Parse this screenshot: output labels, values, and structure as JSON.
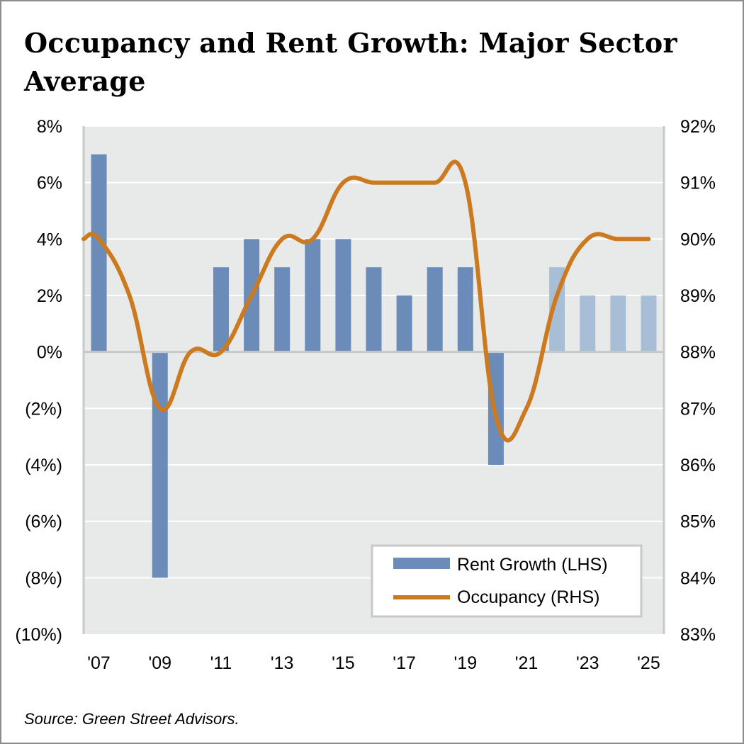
{
  "title": "Occupancy and Rent Growth: Major Sector Average",
  "source": "Source: Green Street Advisors.",
  "colors": {
    "rent_bar": "#6b8cb8",
    "rent_bar_forecast": "#a8bdd6",
    "occupancy_line": "#cc7a1f",
    "plot_bg": "#e8eaea",
    "grid": "#ffffff"
  },
  "chart_data": {
    "type": "bar+line",
    "categories": [
      "'07",
      "'08",
      "'09",
      "'10",
      "'11",
      "'12",
      "'13",
      "'14",
      "'15",
      "'16",
      "'17",
      "'18",
      "'19",
      "'20",
      "'21",
      "'22",
      "'23",
      "'24",
      "'25"
    ],
    "x_tick_labels": [
      "'07",
      "'09",
      "'11",
      "'13",
      "'15",
      "'17",
      "'19",
      "'21",
      "'23",
      "'25"
    ],
    "series": [
      {
        "name": "Rent Growth (LHS)",
        "type": "bar",
        "axis": "left",
        "values": [
          7,
          null,
          -8,
          null,
          3,
          4,
          3,
          4,
          4,
          3,
          2,
          3,
          3,
          -4,
          null,
          3,
          2,
          2,
          2
        ],
        "forecast_from": "'22"
      },
      {
        "name": "Occupancy (RHS)",
        "type": "line",
        "axis": "right",
        "values": [
          90.0,
          89.0,
          87.0,
          88.0,
          88.0,
          89.0,
          90.0,
          90.0,
          91.0,
          91.0,
          91.0,
          91.0,
          91.0,
          86.85,
          87.0,
          89.0,
          90.0,
          90.0,
          90.0
        ]
      }
    ],
    "left_axis": {
      "ylim": [
        -10,
        8
      ],
      "tick_labels": [
        "8%",
        "6%",
        "4%",
        "2%",
        "0%",
        "(2%)",
        "(4%)",
        "(6%)",
        "(8%)",
        "(10%)"
      ]
    },
    "right_axis": {
      "ylim": [
        83,
        92
      ],
      "tick_labels": [
        "92%",
        "91%",
        "90%",
        "89%",
        "88%",
        "87%",
        "86%",
        "85%",
        "84%",
        "83%"
      ]
    },
    "legend": {
      "placement": "bottom-right",
      "entries": [
        "Rent Growth (LHS)",
        "Occupancy (RHS)"
      ]
    },
    "grid": true
  }
}
